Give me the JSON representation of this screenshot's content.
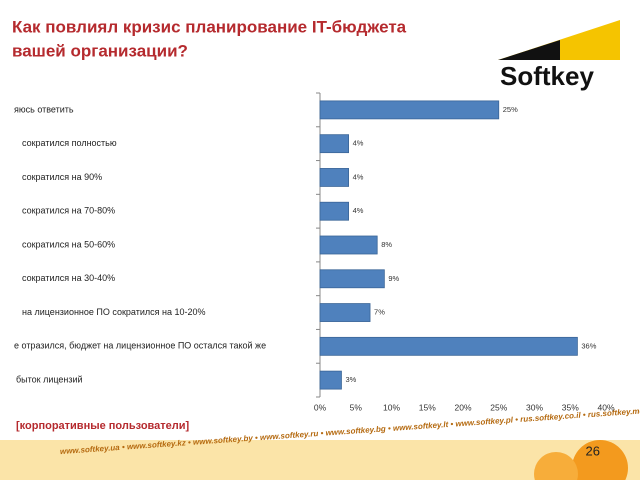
{
  "title": [
    "Как повлиял кризис планирование IT-бюджета",
    "вашей организации?"
  ],
  "logo": "Softkey",
  "note": "[корпоративные пользователи]",
  "page_number": "26",
  "footer": "www.softkey.ua • www.softkey.kz • www.softkey.by • www.softkey.ru • www.softkey.bg • www.softkey.lt • www.softkey.pl • rus.softkey.co.il • rus.softkey.md",
  "chart_data": {
    "type": "barh",
    "categories": [
      "яюсь ответить",
      "сократился полностью",
      "сократился на 90%",
      "сократился на 70-80%",
      "сократился на 50-60%",
      "сократился на 30-40%",
      "на лицензионное ПО сократился на 10-20%",
      "е отразился, бюджет на лицензионное ПО остался такой же",
      "быток лицензий"
    ],
    "values": [
      25,
      4,
      4,
      4,
      8,
      9,
      7,
      36,
      3
    ],
    "value_labels": [
      "25%",
      "4%",
      "4%",
      "4%",
      "8%",
      "9%",
      "7%",
      "36%",
      "3%"
    ],
    "color": "#4f81bd",
    "xlim": [
      0,
      40
    ],
    "xticks": [
      {
        "value": 0,
        "label": "0%"
      },
      {
        "value": 5,
        "label": "5%"
      },
      {
        "value": 10,
        "label": "10%"
      },
      {
        "value": 15,
        "label": "15%"
      },
      {
        "value": 20,
        "label": "20%"
      },
      {
        "value": 25,
        "label": "25%"
      },
      {
        "value": 30,
        "label": "30%"
      },
      {
        "value": 35,
        "label": "35%"
      },
      {
        "value": 40,
        "label": "40%"
      }
    ],
    "grid": false
  }
}
